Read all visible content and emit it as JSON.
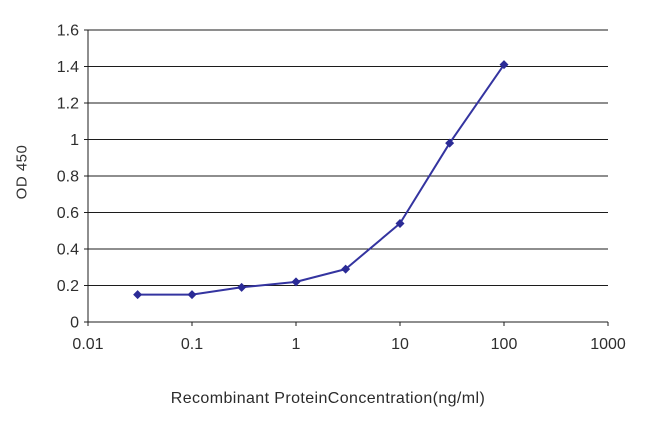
{
  "chart_data": {
    "type": "line",
    "title": "",
    "xlabel": "Recombinant ProteinConcentration(ng/ml)",
    "ylabel": "OD 450",
    "xscale": "log",
    "xlim": [
      0.01,
      1000
    ],
    "ylim": [
      0,
      1.6
    ],
    "xticks": [
      0.01,
      0.1,
      1,
      10,
      100,
      1000
    ],
    "xtick_labels": [
      "0.01",
      "0.1",
      "1",
      "10",
      "100",
      "1000"
    ],
    "ytick_step": 0.2,
    "grid": "horizontal",
    "x": [
      0.03,
      0.1,
      0.3,
      1,
      3,
      10,
      30,
      100
    ],
    "y": [
      0.15,
      0.15,
      0.19,
      0.22,
      0.29,
      0.54,
      0.98,
      1.41
    ],
    "series_name": "OD 450",
    "line_color": "#3434a0",
    "marker": "diamond",
    "marker_color": "#2b2b96",
    "axis_color": "#1c1c1c",
    "text_color": "#2e2e2e",
    "background": "#ffffff"
  }
}
